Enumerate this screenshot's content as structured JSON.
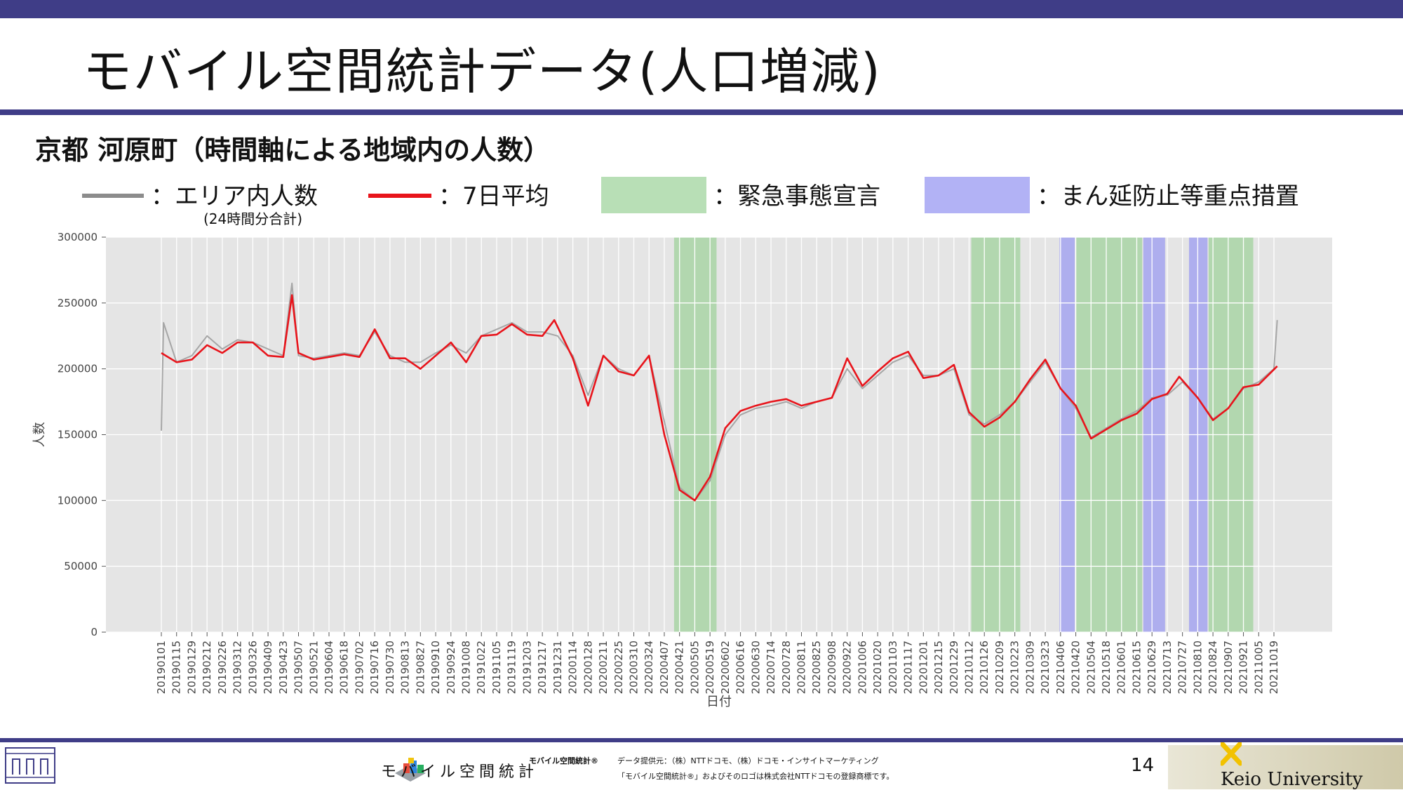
{
  "slide": {
    "title": "モバイル空間統計データ(人口増減)",
    "subtitle": "京都 河原町（時間軸による地域内の人数）",
    "page_number": "14"
  },
  "legend": {
    "area_label": "：エリア内人数",
    "area_note": "(24時間分合計)",
    "avg_label": "：7日平均",
    "emergency_label": "：緊急事態宣言",
    "priority_label": "：まん延防止等重点措置"
  },
  "colors": {
    "accent_bar": "#3f3d87",
    "daily_line": "#a6a6a6",
    "avg_line": "#e8141b",
    "emergency": "#b8dfb6",
    "priority": "#b2b2f5",
    "plot_bg": "#e5e5e5"
  },
  "footer": {
    "brand": "モバイル空間統計",
    "brand_small": "モバイル空間統計®",
    "provider": "データ提供元：（株）NTTドコモ、（株）ドコモ・インサイトマーケティング",
    "trademark": "「モバイル空間統計®」およびそのロゴは株式会社NTTドコモの登録商標です。",
    "university": "Keio University"
  },
  "chart_data": {
    "type": "line",
    "xlabel": "日付",
    "ylabel": "人数",
    "ylim": [
      0,
      300000
    ],
    "yticks": [
      0,
      50000,
      100000,
      150000,
      200000,
      250000,
      300000
    ],
    "xtick_labels": [
      "20190101",
      "20190115",
      "20190129",
      "20190212",
      "20190226",
      "20190312",
      "20190326",
      "20190409",
      "20190423",
      "20190507",
      "20190521",
      "20190604",
      "20190618",
      "20190702",
      "20190716",
      "20190730",
      "20190813",
      "20190827",
      "20190910",
      "20190924",
      "20191008",
      "20191022",
      "20191105",
      "20191119",
      "20191203",
      "20191217",
      "20191231",
      "20200114",
      "20200128",
      "20200211",
      "20200225",
      "20200310",
      "20200324",
      "20200407",
      "20200421",
      "20200505",
      "20200519",
      "20200602",
      "20200616",
      "20200630",
      "20200714",
      "20200728",
      "20200811",
      "20200825",
      "20200908",
      "20200922",
      "20201006",
      "20201020",
      "20201103",
      "20201117",
      "20201201",
      "20201215",
      "20201229",
      "20210112",
      "20210126",
      "20210209",
      "20210223",
      "20210309",
      "20210323",
      "20210406",
      "20210420",
      "20210504",
      "20210518",
      "20210601",
      "20210615",
      "20210629",
      "20210713",
      "20210727",
      "20210810",
      "20210824",
      "20210907",
      "20210921",
      "20211005",
      "20211019"
    ],
    "grid": true,
    "series": [
      {
        "name": "エリア内人数",
        "style": "daily",
        "points": [
          {
            "x": "20190101",
            "y": 153000
          },
          {
            "x": "20190103",
            "y": 235000
          },
          {
            "x": "20190115",
            "y": 205000
          },
          {
            "x": "20190129",
            "y": 210000
          },
          {
            "x": "20190212",
            "y": 225000
          },
          {
            "x": "20190226",
            "y": 215000
          },
          {
            "x": "20190312",
            "y": 222000
          },
          {
            "x": "20190326",
            "y": 220000
          },
          {
            "x": "20190409",
            "y": 215000
          },
          {
            "x": "20190423",
            "y": 210000
          },
          {
            "x": "20190501",
            "y": 265000
          },
          {
            "x": "20190507",
            "y": 210000
          },
          {
            "x": "20190521",
            "y": 208000
          },
          {
            "x": "20190604",
            "y": 210000
          },
          {
            "x": "20190618",
            "y": 212000
          },
          {
            "x": "20190702",
            "y": 210000
          },
          {
            "x": "20190716",
            "y": 228000
          },
          {
            "x": "20190730",
            "y": 210000
          },
          {
            "x": "20190813",
            "y": 205000
          },
          {
            "x": "20190827",
            "y": 205000
          },
          {
            "x": "20190910",
            "y": 212000
          },
          {
            "x": "20190924",
            "y": 218000
          },
          {
            "x": "20191008",
            "y": 212000
          },
          {
            "x": "20191022",
            "y": 225000
          },
          {
            "x": "20191105",
            "y": 230000
          },
          {
            "x": "20191119",
            "y": 235000
          },
          {
            "x": "20191203",
            "y": 228000
          },
          {
            "x": "20191217",
            "y": 228000
          },
          {
            "x": "20191231",
            "y": 225000
          },
          {
            "x": "20200114",
            "y": 210000
          },
          {
            "x": "20200128",
            "y": 180000
          },
          {
            "x": "20200211",
            "y": 210000
          },
          {
            "x": "20200225",
            "y": 200000
          },
          {
            "x": "20200310",
            "y": 195000
          },
          {
            "x": "20200324",
            "y": 210000
          },
          {
            "x": "20200407",
            "y": 160000
          },
          {
            "x": "20200421",
            "y": 110000
          },
          {
            "x": "20200505",
            "y": 100000
          },
          {
            "x": "20200519",
            "y": 115000
          },
          {
            "x": "20200602",
            "y": 150000
          },
          {
            "x": "20200616",
            "y": 165000
          },
          {
            "x": "20200630",
            "y": 170000
          },
          {
            "x": "20200714",
            "y": 172000
          },
          {
            "x": "20200728",
            "y": 175000
          },
          {
            "x": "20200811",
            "y": 170000
          },
          {
            "x": "20200825",
            "y": 175000
          },
          {
            "x": "20200908",
            "y": 178000
          },
          {
            "x": "20200922",
            "y": 200000
          },
          {
            "x": "20201006",
            "y": 185000
          },
          {
            "x": "20201020",
            "y": 195000
          },
          {
            "x": "20201103",
            "y": 205000
          },
          {
            "x": "20201117",
            "y": 210000
          },
          {
            "x": "20201201",
            "y": 195000
          },
          {
            "x": "20201215",
            "y": 195000
          },
          {
            "x": "20201229",
            "y": 200000
          },
          {
            "x": "20210112",
            "y": 165000
          },
          {
            "x": "20210126",
            "y": 158000
          },
          {
            "x": "20210209",
            "y": 165000
          },
          {
            "x": "20210223",
            "y": 175000
          },
          {
            "x": "20210309",
            "y": 190000
          },
          {
            "x": "20210323",
            "y": 205000
          },
          {
            "x": "20210406",
            "y": 185000
          },
          {
            "x": "20210420",
            "y": 170000
          },
          {
            "x": "20210504",
            "y": 148000
          },
          {
            "x": "20210518",
            "y": 155000
          },
          {
            "x": "20210601",
            "y": 162000
          },
          {
            "x": "20210615",
            "y": 168000
          },
          {
            "x": "20210629",
            "y": 178000
          },
          {
            "x": "20210713",
            "y": 180000
          },
          {
            "x": "20210727",
            "y": 190000
          },
          {
            "x": "20210810",
            "y": 178000
          },
          {
            "x": "20210824",
            "y": 162000
          },
          {
            "x": "20210907",
            "y": 170000
          },
          {
            "x": "20210921",
            "y": 185000
          },
          {
            "x": "20211005",
            "y": 190000
          },
          {
            "x": "20211019",
            "y": 200000
          },
          {
            "x": "20211022",
            "y": 237000
          }
        ]
      },
      {
        "name": "7日平均",
        "style": "avg",
        "points": [
          {
            "x": "20190101",
            "y": 212000
          },
          {
            "x": "20190115",
            "y": 205000
          },
          {
            "x": "20190129",
            "y": 207000
          },
          {
            "x": "20190212",
            "y": 218000
          },
          {
            "x": "20190226",
            "y": 212000
          },
          {
            "x": "20190312",
            "y": 220000
          },
          {
            "x": "20190326",
            "y": 220000
          },
          {
            "x": "20190409",
            "y": 210000
          },
          {
            "x": "20190423",
            "y": 209000
          },
          {
            "x": "20190501",
            "y": 256000
          },
          {
            "x": "20190507",
            "y": 212000
          },
          {
            "x": "20190521",
            "y": 207000
          },
          {
            "x": "20190604",
            "y": 209000
          },
          {
            "x": "20190618",
            "y": 211000
          },
          {
            "x": "20190702",
            "y": 209000
          },
          {
            "x": "20190716",
            "y": 230000
          },
          {
            "x": "20190730",
            "y": 208000
          },
          {
            "x": "20190813",
            "y": 208000
          },
          {
            "x": "20190827",
            "y": 200000
          },
          {
            "x": "20190910",
            "y": 210000
          },
          {
            "x": "20190924",
            "y": 220000
          },
          {
            "x": "20191008",
            "y": 205000
          },
          {
            "x": "20191022",
            "y": 225000
          },
          {
            "x": "20191105",
            "y": 226000
          },
          {
            "x": "20191119",
            "y": 234000
          },
          {
            "x": "20191203",
            "y": 226000
          },
          {
            "x": "20191217",
            "y": 225000
          },
          {
            "x": "20191228",
            "y": 237000
          },
          {
            "x": "20200114",
            "y": 208000
          },
          {
            "x": "20200128",
            "y": 172000
          },
          {
            "x": "20200211",
            "y": 210000
          },
          {
            "x": "20200225",
            "y": 198000
          },
          {
            "x": "20200310",
            "y": 195000
          },
          {
            "x": "20200324",
            "y": 210000
          },
          {
            "x": "20200407",
            "y": 150000
          },
          {
            "x": "20200421",
            "y": 108000
          },
          {
            "x": "20200505",
            "y": 100000
          },
          {
            "x": "20200519",
            "y": 118000
          },
          {
            "x": "20200602",
            "y": 155000
          },
          {
            "x": "20200616",
            "y": 168000
          },
          {
            "x": "20200630",
            "y": 172000
          },
          {
            "x": "20200714",
            "y": 175000
          },
          {
            "x": "20200728",
            "y": 177000
          },
          {
            "x": "20200811",
            "y": 172000
          },
          {
            "x": "20200825",
            "y": 175000
          },
          {
            "x": "20200908",
            "y": 178000
          },
          {
            "x": "20200922",
            "y": 208000
          },
          {
            "x": "20201006",
            "y": 187000
          },
          {
            "x": "20201020",
            "y": 198000
          },
          {
            "x": "20201103",
            "y": 208000
          },
          {
            "x": "20201117",
            "y": 213000
          },
          {
            "x": "20201201",
            "y": 193000
          },
          {
            "x": "20201215",
            "y": 195000
          },
          {
            "x": "20201229",
            "y": 203000
          },
          {
            "x": "20210112",
            "y": 167000
          },
          {
            "x": "20210126",
            "y": 156000
          },
          {
            "x": "20210209",
            "y": 163000
          },
          {
            "x": "20210223",
            "y": 175000
          },
          {
            "x": "20210309",
            "y": 192000
          },
          {
            "x": "20210323",
            "y": 207000
          },
          {
            "x": "20210406",
            "y": 185000
          },
          {
            "x": "20210420",
            "y": 172000
          },
          {
            "x": "20210504",
            "y": 147000
          },
          {
            "x": "20210518",
            "y": 154000
          },
          {
            "x": "20210601",
            "y": 161000
          },
          {
            "x": "20210615",
            "y": 166000
          },
          {
            "x": "20210629",
            "y": 177000
          },
          {
            "x": "20210713",
            "y": 181000
          },
          {
            "x": "20210724",
            "y": 194000
          },
          {
            "x": "20210810",
            "y": 178000
          },
          {
            "x": "20210824",
            "y": 161000
          },
          {
            "x": "20210907",
            "y": 170000
          },
          {
            "x": "20210921",
            "y": 186000
          },
          {
            "x": "20211005",
            "y": 188000
          },
          {
            "x": "20211022",
            "y": 202000
          }
        ]
      }
    ],
    "bands": [
      {
        "type": "emergency",
        "start": "20200416",
        "end": "20200525"
      },
      {
        "type": "emergency",
        "start": "20210114",
        "end": "20210228"
      },
      {
        "type": "priority",
        "start": "20210405",
        "end": "20210419"
      },
      {
        "type": "emergency",
        "start": "20210420",
        "end": "20210620"
      },
      {
        "type": "priority",
        "start": "20210621",
        "end": "20210711"
      },
      {
        "type": "priority",
        "start": "20210802",
        "end": "20210819"
      },
      {
        "type": "emergency",
        "start": "20210820",
        "end": "20210930"
      }
    ]
  }
}
